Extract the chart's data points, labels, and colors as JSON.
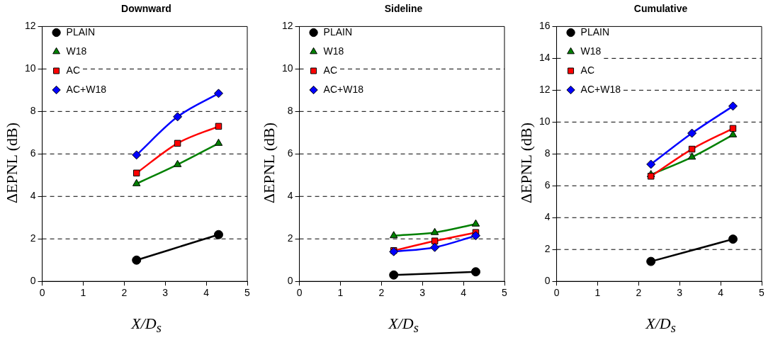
{
  "chart_data": [
    {
      "type": "line",
      "title": "Downward",
      "xlabel": "X/D$_{s}$",
      "ylabel": "ΔEPNL (dB)",
      "xlim": [
        0,
        5
      ],
      "xticks": [
        0,
        1,
        2,
        3,
        4,
        5
      ],
      "ylim": [
        0,
        12
      ],
      "yticks": [
        0,
        2,
        4,
        6,
        8,
        10,
        12
      ],
      "grid": "y",
      "legend": "top left",
      "line_style": "solid",
      "series": [
        {
          "name": "PLAIN",
          "color": "#000000",
          "marker": "circle",
          "x": [
            2.3,
            4.3
          ],
          "values": [
            1.0,
            2.2
          ]
        },
        {
          "name": "W18",
          "color": "#008000",
          "marker": "triangle",
          "x": [
            2.3,
            3.3,
            4.3
          ],
          "values": [
            4.6,
            5.5,
            6.5
          ]
        },
        {
          "name": "AC",
          "color": "#ff0000",
          "marker": "square",
          "x": [
            2.3,
            3.3,
            4.3
          ],
          "values": [
            5.1,
            6.5,
            7.3
          ]
        },
        {
          "name": "AC+W18",
          "color": "#0000ff",
          "marker": "diamond",
          "x": [
            2.3,
            3.3,
            4.3
          ],
          "values": [
            5.95,
            7.75,
            8.85
          ]
        }
      ]
    },
    {
      "type": "line",
      "title": "Sideline",
      "xlabel": "X/D$_{s}$",
      "ylabel": "ΔEPNL (dB)",
      "xlim": [
        0,
        5
      ],
      "xticks": [
        0,
        1,
        2,
        3,
        4,
        5
      ],
      "ylim": [
        0,
        12
      ],
      "yticks": [
        0,
        2,
        4,
        6,
        8,
        10,
        12
      ],
      "grid": "y",
      "legend": "top left",
      "line_style": "solid",
      "series": [
        {
          "name": "PLAIN",
          "color": "#000000",
          "marker": "circle",
          "x": [
            2.3,
            4.3
          ],
          "values": [
            0.3,
            0.45
          ]
        },
        {
          "name": "W18",
          "color": "#008000",
          "marker": "triangle",
          "x": [
            2.3,
            3.3,
            4.3
          ],
          "values": [
            2.15,
            2.3,
            2.7
          ]
        },
        {
          "name": "AC",
          "color": "#ff0000",
          "marker": "square",
          "x": [
            2.3,
            3.3,
            4.3
          ],
          "values": [
            1.45,
            1.9,
            2.3
          ]
        },
        {
          "name": "AC+W18",
          "color": "#0000ff",
          "marker": "diamond",
          "x": [
            2.3,
            3.3,
            4.3
          ],
          "values": [
            1.4,
            1.6,
            2.15
          ]
        }
      ]
    },
    {
      "type": "line",
      "title": "Cumulative",
      "xlabel": "X/D$_{s}$",
      "ylabel": "ΔEPNL (dB)",
      "xlim": [
        0,
        5
      ],
      "xticks": [
        0,
        1,
        2,
        3,
        4,
        5
      ],
      "ylim": [
        0,
        16
      ],
      "yticks": [
        0,
        2,
        4,
        6,
        8,
        10,
        12,
        14,
        16
      ],
      "grid": "y",
      "legend": "top left",
      "line_style": "solid",
      "series": [
        {
          "name": "PLAIN",
          "color": "#000000",
          "marker": "circle",
          "x": [
            2.3,
            4.3
          ],
          "values": [
            1.25,
            2.65
          ]
        },
        {
          "name": "W18",
          "color": "#008000",
          "marker": "triangle",
          "x": [
            2.3,
            3.3,
            4.3
          ],
          "values": [
            6.7,
            7.8,
            9.2
          ]
        },
        {
          "name": "AC",
          "color": "#ff0000",
          "marker": "square",
          "x": [
            2.3,
            3.3,
            4.3
          ],
          "values": [
            6.6,
            8.3,
            9.6
          ]
        },
        {
          "name": "AC+W18",
          "color": "#0000ff",
          "marker": "diamond",
          "x": [
            2.3,
            3.3,
            4.3
          ],
          "values": [
            7.35,
            9.3,
            11.0
          ]
        }
      ]
    }
  ]
}
